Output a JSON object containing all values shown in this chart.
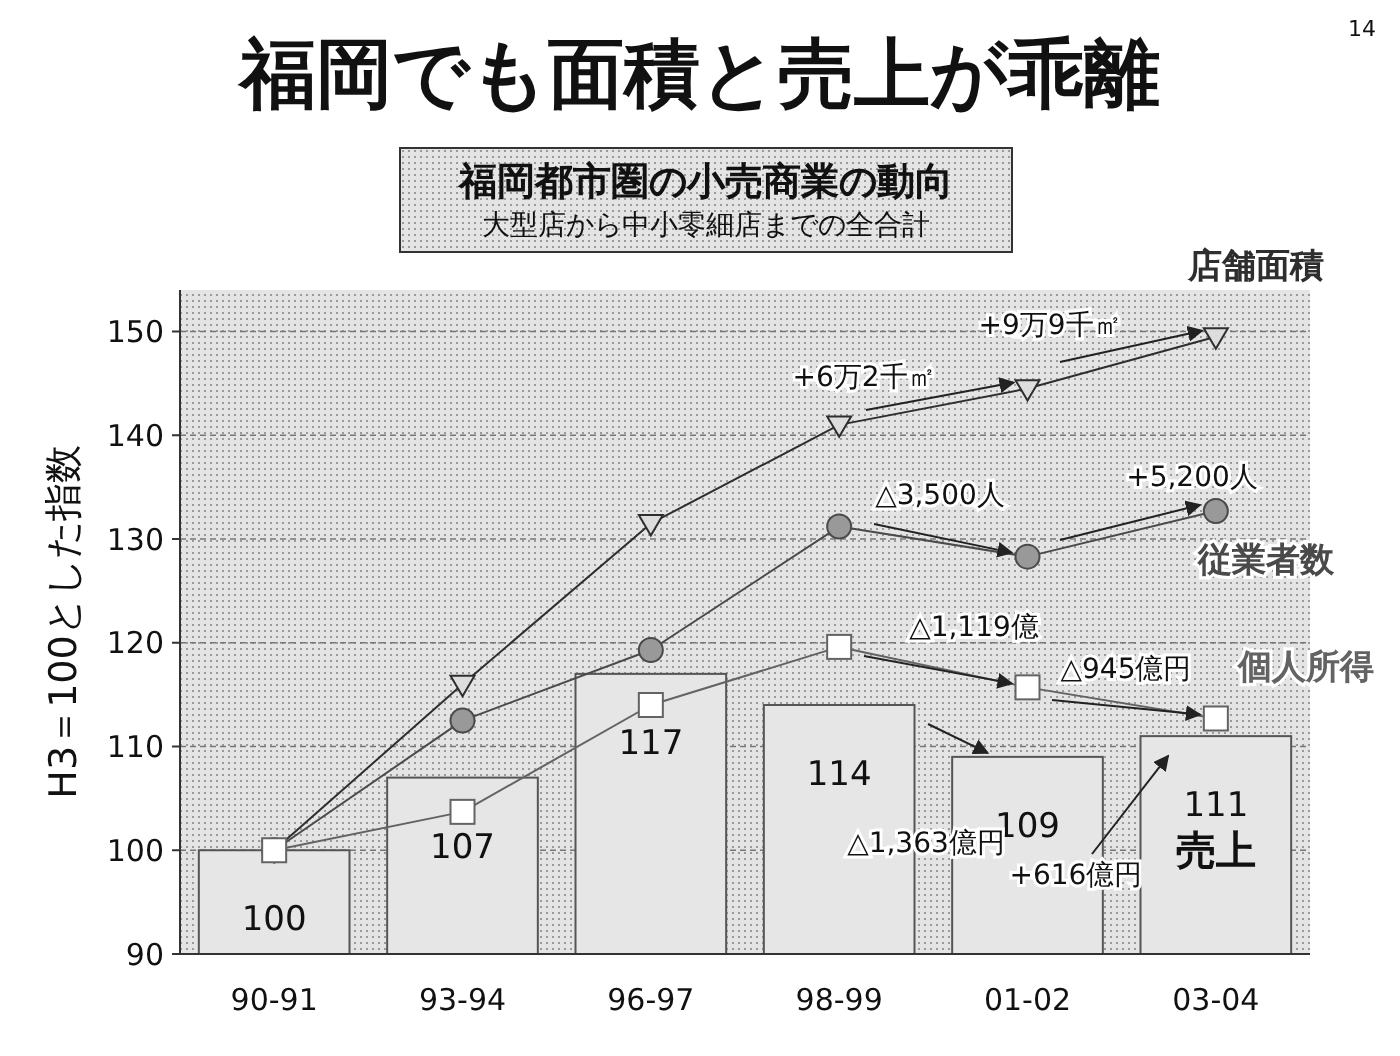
{
  "chart_data": {
    "type": "bar",
    "title": "福岡でも面積と売上が乖離",
    "subtitle": "福岡都市圏の小売商業の動向",
    "ylabel": "H3＝100とした指数",
    "categories": [
      "90-91",
      "93-94",
      "96-97",
      "98-99",
      "01-02",
      "03-04"
    ],
    "ylim": [
      90,
      154
    ],
    "yticks": [
      90,
      100,
      110,
      120,
      130,
      140,
      150
    ],
    "grid": "y",
    "series": [
      {
        "name": "売上",
        "color": "#e6e6e6",
        "values": [
          100,
          107,
          117,
          114,
          109,
          111
        ],
        "value_labels": [
          "100",
          "107",
          "117",
          "114",
          "109",
          "111"
        ]
      },
      {
        "name": "店舗面積",
        "type": "line",
        "color": "#2e2e2e",
        "marker": "triangle",
        "values": [
          100,
          116,
          131.5,
          141,
          144.5,
          149.5
        ]
      },
      {
        "name": "従業者数",
        "type": "line",
        "color": "#4a4a4a",
        "marker": "circle",
        "values": [
          100,
          112.5,
          119.3,
          131.2,
          128.3,
          132.7
        ]
      },
      {
        "name": "個人所得",
        "type": "line",
        "color": "#636363",
        "marker": "square",
        "values": [
          100,
          103.7,
          114,
          119.6,
          115.7,
          112.7
        ]
      }
    ],
    "annotations": [
      "大型店から中小零細店までの全合計",
      {
        "text": "+6万2千㎡",
        "x": "01-02",
        "y": 144.5
      },
      {
        "text": "+9万9千㎡",
        "x": "03-04",
        "y": 149.5
      },
      {
        "text": "△3,500人",
        "x": "01-02",
        "y": 128.3
      },
      {
        "text": "+5,200人",
        "x": "03-04",
        "y": 132.7
      },
      {
        "text": "△1,119億",
        "x": "01-02",
        "y": 115.7
      },
      {
        "text": "△945億円",
        "x": "03-04",
        "y": 112.7
      },
      {
        "text": "△1,363億円",
        "x": "01-02",
        "y": 109
      },
      "+616億円",
      "14"
    ]
  }
}
